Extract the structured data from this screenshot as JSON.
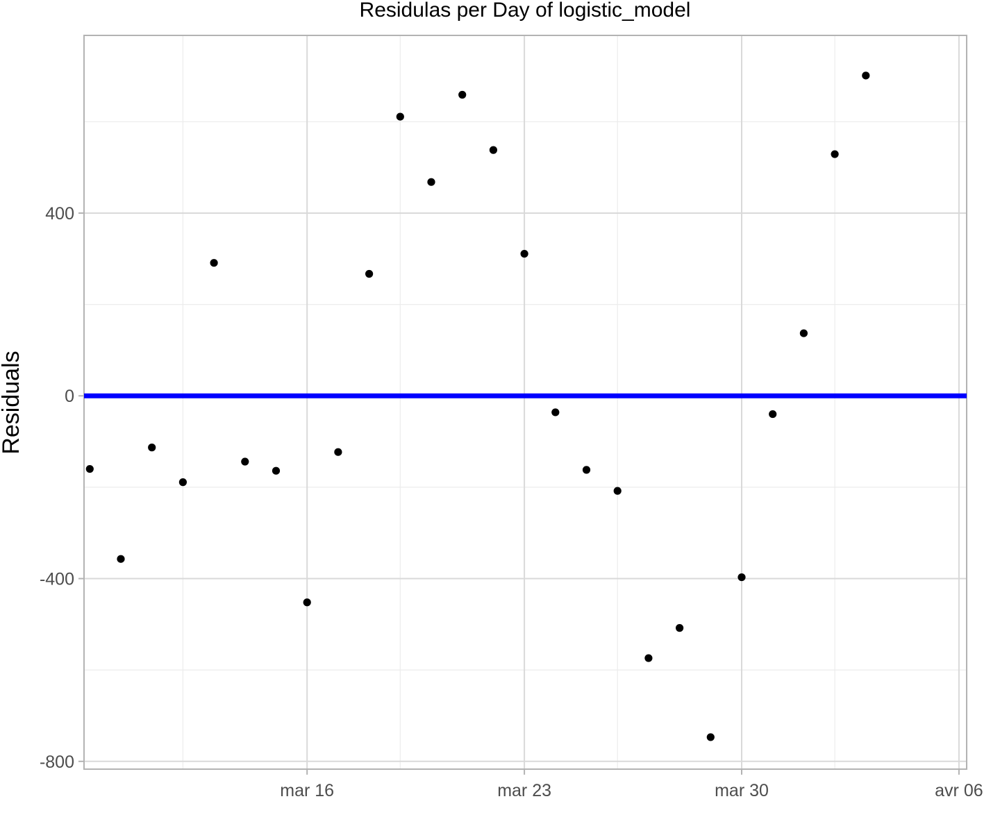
{
  "chart_data": {
    "type": "scatter",
    "title": "Residulas per Day of logistic_model",
    "xlabel": "",
    "ylabel": "Residuals",
    "x_type": "date",
    "xlim": [
      "2020-03-08",
      "2020-04-06"
    ],
    "ylim": [
      -800,
      750
    ],
    "x_ticks": [
      {
        "value": "2020-03-16",
        "label": "mar 16"
      },
      {
        "value": "2020-03-23",
        "label": "mar 23"
      },
      {
        "value": "2020-03-30",
        "label": "mar 30"
      },
      {
        "value": "2020-04-06",
        "label": "avr 06"
      }
    ],
    "x_minor_ticks": [
      "2020-03-12",
      "2020-03-19",
      "2020-03-26",
      "2020-04-02"
    ],
    "y_ticks": [
      {
        "value": -800,
        "label": "-800"
      },
      {
        "value": -400,
        "label": "-400"
      },
      {
        "value": 0,
        "label": "0"
      },
      {
        "value": 400,
        "label": "400"
      }
    ],
    "y_minor_ticks": [
      -600,
      -200,
      200,
      600
    ],
    "grid": true,
    "reference_line": {
      "y": 0,
      "color": "#0000ff"
    },
    "point_color": "#000000",
    "series": [
      {
        "points": [
          {
            "x": "2020-03-09",
            "y": -160
          },
          {
            "x": "2020-03-10",
            "y": -357
          },
          {
            "x": "2020-03-11",
            "y": -113
          },
          {
            "x": "2020-03-12",
            "y": -189
          },
          {
            "x": "2020-03-13",
            "y": 291
          },
          {
            "x": "2020-03-14",
            "y": -144
          },
          {
            "x": "2020-03-15",
            "y": -164
          },
          {
            "x": "2020-03-16",
            "y": -452
          },
          {
            "x": "2020-03-17",
            "y": -123
          },
          {
            "x": "2020-03-18",
            "y": 267
          },
          {
            "x": "2020-03-19",
            "y": 611
          },
          {
            "x": "2020-03-20",
            "y": 468
          },
          {
            "x": "2020-03-21",
            "y": 659
          },
          {
            "x": "2020-03-22",
            "y": 538
          },
          {
            "x": "2020-03-23",
            "y": 311
          },
          {
            "x": "2020-03-24",
            "y": -36
          },
          {
            "x": "2020-03-25",
            "y": -162
          },
          {
            "x": "2020-03-26",
            "y": -208
          },
          {
            "x": "2020-03-27",
            "y": -574
          },
          {
            "x": "2020-03-28",
            "y": -508
          },
          {
            "x": "2020-03-29",
            "y": -747
          },
          {
            "x": "2020-03-30",
            "y": -397
          },
          {
            "x": "2020-03-31",
            "y": -40
          },
          {
            "x": "2020-04-01",
            "y": 137
          },
          {
            "x": "2020-04-02",
            "y": 529
          },
          {
            "x": "2020-04-03",
            "y": 701
          }
        ]
      }
    ]
  }
}
